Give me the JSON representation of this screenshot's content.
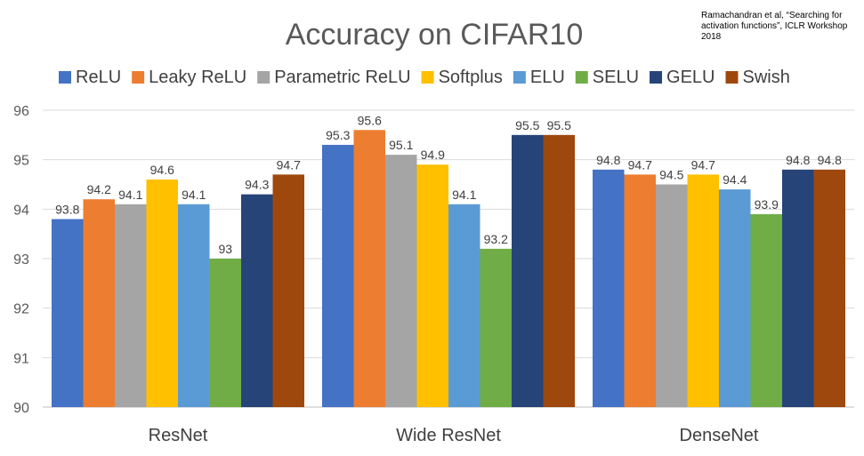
{
  "chart_data": {
    "type": "bar",
    "title": "Accuracy on CIFAR10",
    "citation": "Ramachandran et al, “Searching for\nactivation functions”, ICLR Workshop 2018",
    "xlabel": "",
    "ylabel": "",
    "categories": [
      "ResNet",
      "Wide ResNet",
      "DenseNet"
    ],
    "ylim": [
      90,
      96
    ],
    "yticks": [
      90,
      91,
      92,
      93,
      94,
      95,
      96
    ],
    "grid": true,
    "legend_position": "top",
    "series": [
      {
        "name": "ReLU",
        "color": "#4472C4",
        "values": [
          93.8,
          95.3,
          94.8
        ]
      },
      {
        "name": "Leaky ReLU",
        "color": "#ED7D31",
        "values": [
          94.2,
          95.6,
          94.7
        ]
      },
      {
        "name": "Parametric ReLU",
        "color": "#A5A5A5",
        "values": [
          94.1,
          95.1,
          94.5
        ]
      },
      {
        "name": "Softplus",
        "color": "#FFC000",
        "values": [
          94.6,
          94.9,
          94.7
        ]
      },
      {
        "name": "ELU",
        "color": "#5B9BD5",
        "values": [
          94.1,
          94.1,
          94.4
        ]
      },
      {
        "name": "SELU",
        "color": "#70AD47",
        "values": [
          93,
          93.2,
          93.9
        ]
      },
      {
        "name": "GELU",
        "color": "#264478",
        "values": [
          94.3,
          95.5,
          94.8
        ]
      },
      {
        "name": "Swish",
        "color": "#9E480E",
        "values": [
          94.7,
          95.5,
          94.8
        ]
      }
    ]
  }
}
